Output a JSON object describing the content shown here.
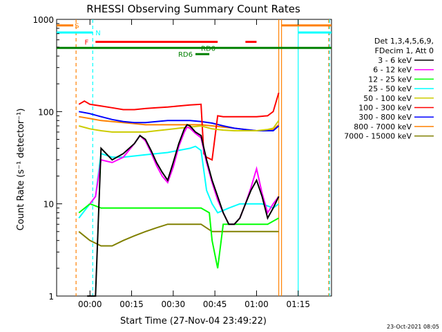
{
  "chart_data": {
    "type": "line",
    "title": "RHESSI Observing Summary Count Rates",
    "xlabel": "Start Time (27-Nov-04 23:49:22)",
    "ylabel": "Count Rate (s⁻¹ detector⁻¹)",
    "footer": "23-Oct-2021 08:05",
    "yscale": "log",
    "ylim": [
      1,
      1000
    ],
    "xlim_min": [
      -12,
      87
    ],
    "x_unit": "minutes after 00:00",
    "x_ticks": [
      {
        "value": 0,
        "label": "00:00"
      },
      {
        "value": 15,
        "label": "00:15"
      },
      {
        "value": 30,
        "label": "00:30"
      },
      {
        "value": 45,
        "label": "00:45"
      },
      {
        "value": 60,
        "label": "01:00"
      },
      {
        "value": 75,
        "label": "01:15"
      }
    ],
    "y_ticks": [
      {
        "value": 1,
        "label": "1"
      },
      {
        "value": 10,
        "label": "10"
      },
      {
        "value": 100,
        "label": "100"
      },
      {
        "value": 1000,
        "label": "1000"
      }
    ],
    "legend_header": [
      "Det 1,3,4,5,6,9,",
      "FDecim 1, Att 0"
    ],
    "legend_position": "right",
    "series": [
      {
        "name": "3 - 6 keV",
        "color": "#000000",
        "x": [
          -1,
          2,
          4,
          8,
          12,
          16,
          18,
          20,
          22,
          24,
          26,
          28,
          30,
          32,
          34,
          35,
          36,
          38,
          40,
          42,
          44,
          46,
          48,
          50,
          52,
          54,
          56,
          58,
          60,
          62,
          64,
          66,
          68
        ],
        "y": [
          1,
          1,
          40,
          30,
          35,
          45,
          55,
          50,
          38,
          28,
          22,
          18,
          28,
          45,
          65,
          72,
          70,
          60,
          55,
          30,
          18,
          12,
          8,
          6,
          6,
          7,
          10,
          14,
          18,
          12,
          7,
          9,
          12
        ]
      },
      {
        "name": "6 - 12 keV",
        "color": "#ff00ff",
        "x": [
          0,
          2,
          4,
          8,
          12,
          16,
          18,
          20,
          22,
          24,
          26,
          28,
          30,
          32,
          34,
          35,
          36,
          38,
          40,
          42,
          44,
          46,
          48,
          50,
          52,
          54,
          56,
          58,
          60,
          62,
          64,
          66,
          68
        ],
        "y": [
          10,
          12,
          30,
          28,
          32,
          45,
          55,
          48,
          36,
          26,
          20,
          17,
          25,
          42,
          60,
          68,
          66,
          58,
          52,
          28,
          17,
          11,
          8,
          6,
          6,
          7,
          10,
          15,
          24,
          13,
          8,
          10,
          12
        ]
      },
      {
        "name": "12 - 25 keV",
        "color": "#00ff00",
        "x": [
          -4,
          0,
          4,
          10,
          20,
          30,
          36,
          40,
          43,
          44,
          46,
          48,
          52,
          56,
          60,
          64,
          68
        ],
        "y": [
          8,
          10,
          9,
          9,
          9,
          9,
          9,
          9,
          8,
          4,
          2,
          6,
          6,
          6,
          6,
          6,
          7
        ]
      },
      {
        "name": "25 - 50 keV",
        "color": "#00ffff",
        "x": [
          -4,
          0,
          2,
          4,
          8,
          12,
          16,
          20,
          24,
          28,
          32,
          36,
          38,
          40,
          42,
          44,
          46,
          50,
          54,
          58,
          62,
          66,
          68
        ],
        "y": [
          7,
          10,
          12,
          35,
          32,
          32,
          33,
          34,
          35,
          36,
          38,
          40,
          42,
          38,
          14,
          10,
          8,
          9,
          10,
          10,
          10,
          9,
          10
        ]
      },
      {
        "name": "50 - 100 keV",
        "color": "#cccc00",
        "x": [
          -4,
          0,
          4,
          8,
          12,
          16,
          20,
          24,
          28,
          32,
          36,
          40,
          44,
          48,
          52,
          56,
          60,
          64,
          66,
          68
        ],
        "y": [
          70,
          65,
          62,
          60,
          60,
          60,
          60,
          62,
          64,
          66,
          68,
          70,
          65,
          63,
          62,
          62,
          62,
          64,
          66,
          80
        ]
      },
      {
        "name": "100 - 300 keV",
        "color": "#ff0000",
        "x": [
          -4,
          -2,
          0,
          4,
          8,
          12,
          16,
          20,
          24,
          28,
          32,
          36,
          40,
          41,
          42,
          44,
          46,
          48,
          52,
          56,
          60,
          64,
          66,
          68
        ],
        "y": [
          120,
          130,
          120,
          115,
          110,
          105,
          105,
          108,
          110,
          112,
          115,
          118,
          120,
          35,
          32,
          30,
          90,
          88,
          88,
          88,
          88,
          90,
          100,
          160
        ]
      },
      {
        "name": "300 - 800 keV",
        "color": "#0000ff",
        "x": [
          -4,
          0,
          4,
          8,
          12,
          16,
          20,
          24,
          28,
          32,
          36,
          40,
          44,
          48,
          52,
          56,
          60,
          64,
          66,
          68
        ],
        "y": [
          100,
          95,
          88,
          82,
          78,
          76,
          76,
          78,
          80,
          80,
          80,
          78,
          75,
          70,
          66,
          64,
          62,
          62,
          62,
          70
        ]
      },
      {
        "name": "800 - 7000 keV",
        "color": "#ff8000",
        "x": [
          -4,
          0,
          4,
          8,
          12,
          16,
          20,
          24,
          28,
          32,
          36,
          40,
          44,
          48,
          52,
          56,
          60,
          64,
          66,
          68
        ],
        "y": [
          88,
          84,
          80,
          78,
          76,
          74,
          72,
          72,
          72,
          72,
          72,
          72,
          70,
          68,
          66,
          64,
          62,
          62,
          64,
          72
        ]
      },
      {
        "name": "7000 - 15000 keV",
        "color": "#808000",
        "x": [
          -4,
          0,
          4,
          8,
          12,
          16,
          20,
          24,
          28,
          32,
          36,
          40,
          44,
          48,
          52,
          56,
          60,
          64,
          66,
          68
        ],
        "y": [
          5,
          4,
          3.5,
          3.5,
          4,
          4.5,
          5,
          5.5,
          6,
          6,
          6,
          6,
          5,
          5,
          5,
          5,
          5,
          5,
          5,
          5
        ]
      }
    ],
    "flag_bars": [
      {
        "label": "S",
        "color": "#ff8000",
        "x_start": -12,
        "x_end": -6,
        "y": 860
      },
      {
        "label": "N",
        "color": "#00ffff",
        "x_start": -12,
        "x_end": 1,
        "y": 720
      },
      {
        "label": "F",
        "color": "#ff0000",
        "x_start": 2,
        "x_end": 46,
        "y": 570
      },
      {
        "label": "",
        "color": "#ff0000",
        "x_start": 56,
        "x_end": 60,
        "y": 570
      },
      {
        "label": "RD0",
        "color": "#008000",
        "x_start": -12,
        "x_end": 87,
        "y": 490
      },
      {
        "label": "RD6",
        "color": "#008000",
        "x_start": 38,
        "x_end": 43,
        "y": 420
      },
      {
        "label": "",
        "color": "#ff8000",
        "x_start": 69,
        "x_end": 87,
        "y": 860
      },
      {
        "label": "",
        "color": "#00ffff",
        "x_start": 75,
        "x_end": 87,
        "y": 720
      }
    ],
    "vertical_markers": [
      {
        "x": -5,
        "color": "#ff8000",
        "style": "dashed"
      },
      {
        "x": 1,
        "color": "#00ffff",
        "style": "dashed"
      },
      {
        "x": 68,
        "color": "#ff8000",
        "style": "solid"
      },
      {
        "x": 69,
        "color": "#ff8000",
        "style": "solid"
      },
      {
        "x": 75,
        "color": "#00ffff",
        "style": "solid"
      },
      {
        "x": 86,
        "color": "#ff8000",
        "style": "dashed"
      },
      {
        "x": 86.3,
        "color": "#00ffff",
        "style": "dashed"
      }
    ]
  }
}
